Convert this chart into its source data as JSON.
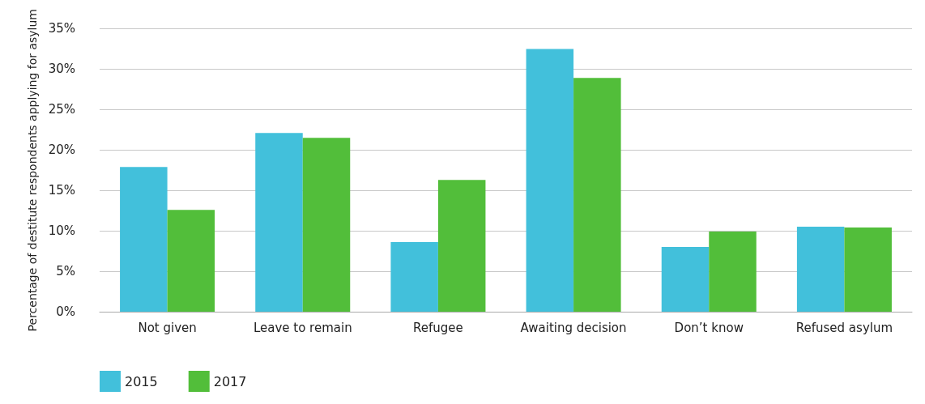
{
  "chart_data": {
    "type": "bar",
    "ylabel": "Percentage of destitute respondents applying for asylum",
    "categories": [
      "Not given",
      "Leave to remain",
      "Refugee",
      "Awaiting decision",
      "Don’t know",
      "Refused asylum"
    ],
    "series": [
      {
        "name": "2015",
        "color": "#42c0db",
        "values": [
          17.9,
          22.1,
          8.6,
          32.5,
          8.0,
          10.5
        ]
      },
      {
        "name": "2017",
        "color": "#52be3a",
        "values": [
          12.6,
          21.5,
          16.3,
          28.9,
          9.9,
          10.4
        ]
      }
    ],
    "ylim": [
      0,
      35
    ],
    "yticks": [
      {
        "value": 0,
        "label": "0%"
      },
      {
        "value": 5,
        "label": "5%"
      },
      {
        "value": 10,
        "label": "10%"
      },
      {
        "value": 15,
        "label": "15%"
      },
      {
        "value": 20,
        "label": "20%"
      },
      {
        "value": 25,
        "label": "25%"
      },
      {
        "value": 30,
        "label": "30%"
      },
      {
        "value": 35,
        "label": "35%"
      }
    ],
    "grid": "y",
    "legend": "bottom left"
  }
}
